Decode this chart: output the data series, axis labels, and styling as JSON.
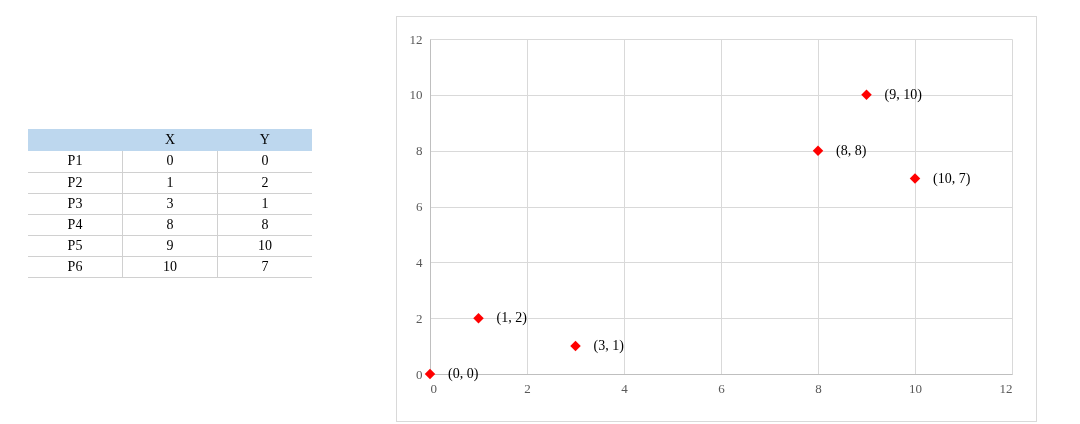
{
  "chart_data": [
    {
      "type": "other",
      "categories": [
        "P1",
        "P2",
        "P3",
        "P4",
        "P5",
        "P6"
      ],
      "series": [
        {
          "name": "X",
          "values": [
            0,
            1,
            3,
            8,
            9,
            10
          ]
        },
        {
          "name": "Y",
          "values": [
            0,
            2,
            1,
            8,
            10,
            7
          ]
        }
      ],
      "data_labels": true
    },
    {
      "type": "scatter",
      "x": [
        0,
        1,
        3,
        8,
        9,
        10
      ],
      "values": [
        0,
        2,
        1,
        8,
        10,
        7
      ],
      "value_labels": [
        "(0, 0)",
        "(1, 2)",
        "(3, 1)",
        "(8, 8)",
        "(9, 10)",
        "(10, 7)"
      ],
      "color": "#ff0000",
      "marker": "diamond",
      "xlim": [
        0,
        12
      ],
      "xticks": [
        0,
        2,
        4,
        6,
        8,
        10,
        12
      ],
      "ylim": [
        0,
        12
      ],
      "yticks": [
        0,
        2,
        4,
        6,
        8,
        10,
        12
      ],
      "grid": true
    }
  ]
}
